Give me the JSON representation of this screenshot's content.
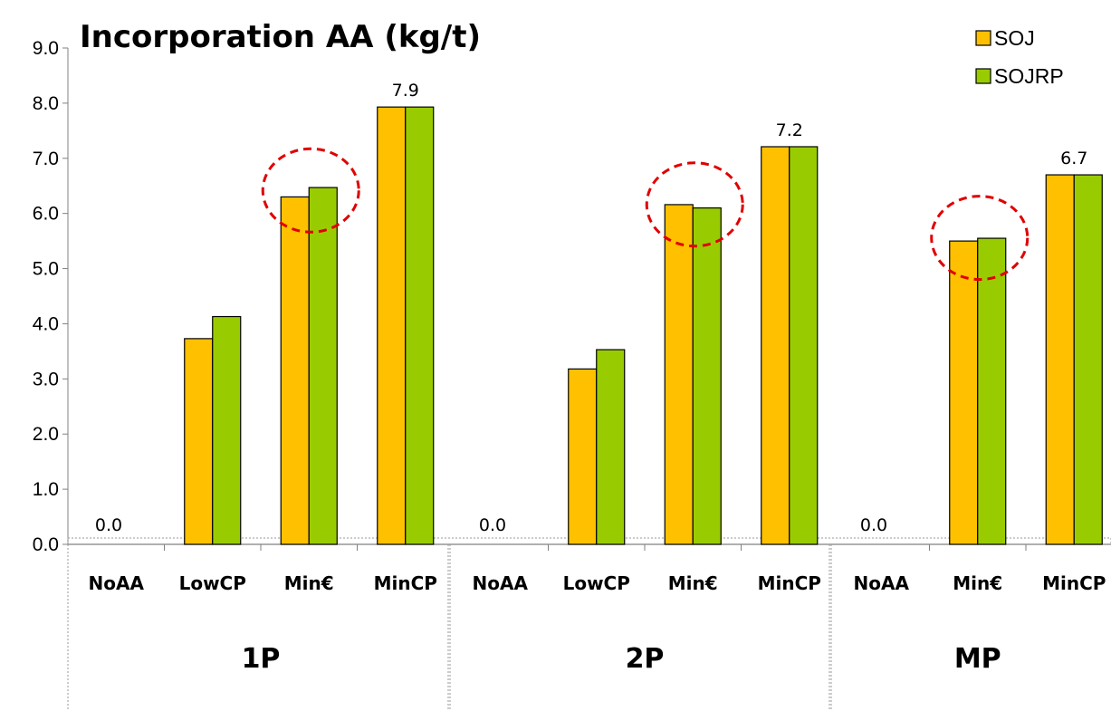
{
  "chart_data": {
    "type": "bar",
    "title": "Incorporation AA (kg/t)",
    "ylim": [
      0,
      9
    ],
    "yticks": [
      "0.0",
      "1.0",
      "2.0",
      "3.0",
      "4.0",
      "5.0",
      "6.0",
      "7.0",
      "8.0",
      "9.0"
    ],
    "legend_position": "top-right",
    "colors": {
      "SOJ": "#FFC000",
      "SOJRP": "#99CC00",
      "highlight": "#E00000"
    },
    "series": [
      {
        "name": "SOJ"
      },
      {
        "name": "SOJRP"
      }
    ],
    "groups": [
      {
        "label": "1P",
        "categories": [
          {
            "label": "NoAA",
            "values": [
              0.0,
              0.0
            ],
            "data_label": "0.0"
          },
          {
            "label": "LowCP",
            "values": [
              3.73,
              4.13
            ]
          },
          {
            "label": "Min€",
            "values": [
              6.3,
              6.47
            ],
            "highlighted": true
          },
          {
            "label": "MinCP",
            "values": [
              7.93,
              7.93
            ],
            "data_label": "7.9"
          }
        ]
      },
      {
        "label": "2P",
        "categories": [
          {
            "label": "NoAA",
            "values": [
              0.0,
              0.0
            ],
            "data_label": "0.0"
          },
          {
            "label": "LowCP",
            "values": [
              3.18,
              3.53
            ]
          },
          {
            "label": "Min€",
            "values": [
              6.16,
              6.1
            ],
            "highlighted": true
          },
          {
            "label": "MinCP",
            "values": [
              7.21,
              7.21
            ],
            "data_label": "7.2"
          }
        ]
      },
      {
        "label": "MP",
        "categories": [
          {
            "label": "NoAA",
            "values": [
              0.0,
              0.0
            ],
            "data_label": "0.0"
          },
          {
            "label": "Min€",
            "values": [
              5.5,
              5.55
            ],
            "highlighted": true
          },
          {
            "label": "MinCP",
            "values": [
              6.7,
              6.7
            ],
            "data_label": "6.7"
          }
        ]
      }
    ]
  }
}
